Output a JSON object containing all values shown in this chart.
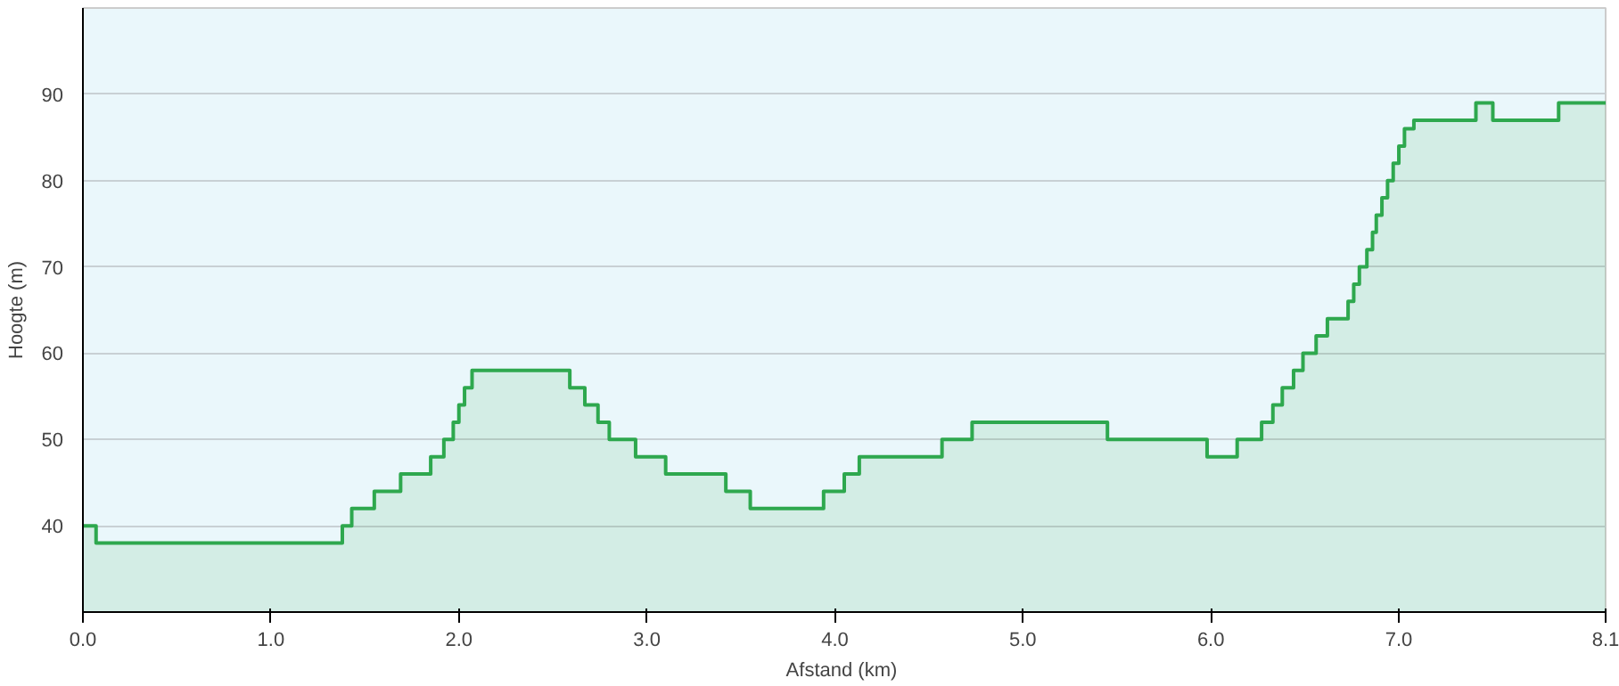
{
  "chart_data": {
    "type": "area",
    "xlabel": "Afstand  (km)",
    "ylabel": "Hoogte (m)",
    "x": [
      0,
      0.07,
      0.07,
      1.38,
      1.38,
      1.43,
      1.43,
      1.55,
      1.55,
      1.69,
      1.69,
      1.85,
      1.85,
      1.92,
      1.92,
      1.97,
      1.97,
      2.0,
      2.0,
      2.03,
      2.03,
      2.07,
      2.07,
      2.59,
      2.59,
      2.67,
      2.67,
      2.74,
      2.74,
      2.8,
      2.8,
      2.94,
      2.94,
      3.1,
      3.1,
      3.42,
      3.42,
      3.55,
      3.55,
      3.94,
      3.94,
      4.05,
      4.05,
      4.13,
      4.13,
      4.57,
      4.57,
      4.73,
      4.73,
      5.45,
      5.45,
      5.98,
      5.98,
      6.14,
      6.14,
      6.27,
      6.27,
      6.33,
      6.33,
      6.38,
      6.38,
      6.44,
      6.44,
      6.49,
      6.49,
      6.56,
      6.56,
      6.62,
      6.62,
      6.73,
      6.73,
      6.76,
      6.76,
      6.79,
      6.79,
      6.83,
      6.83,
      6.86,
      6.86,
      6.88,
      6.88,
      6.91,
      6.91,
      6.94,
      6.94,
      6.97,
      6.97,
      7.0,
      7.0,
      7.03,
      7.03,
      7.08,
      7.08,
      7.41,
      7.41,
      7.5,
      7.5,
      7.85,
      7.85,
      8.1
    ],
    "series": [
      {
        "color": "#2ea84e",
        "values": [
          40,
          40,
          38,
          38,
          40,
          40,
          42,
          42,
          44,
          44,
          46,
          46,
          48,
          48,
          50,
          50,
          52,
          52,
          54,
          54,
          56,
          56,
          58,
          58,
          56,
          56,
          54,
          54,
          52,
          52,
          50,
          50,
          48,
          48,
          46,
          46,
          44,
          44,
          42,
          42,
          44,
          44,
          46,
          46,
          48,
          48,
          50,
          50,
          52,
          52,
          50,
          50,
          48,
          48,
          50,
          50,
          52,
          52,
          54,
          54,
          56,
          56,
          58,
          58,
          60,
          60,
          62,
          62,
          64,
          64,
          66,
          66,
          68,
          68,
          70,
          70,
          72,
          72,
          74,
          74,
          76,
          76,
          78,
          78,
          80,
          80,
          82,
          82,
          84,
          84,
          86,
          86,
          87,
          87,
          89,
          89,
          87,
          87,
          89,
          89
        ]
      }
    ],
    "xlim": [
      0,
      8.1
    ],
    "ylim": [
      30,
      100
    ],
    "xticks": [
      {
        "value": 0,
        "label": "0.0"
      },
      {
        "value": 1,
        "label": "1.0"
      },
      {
        "value": 2,
        "label": "2.0"
      },
      {
        "value": 3,
        "label": "3.0"
      },
      {
        "value": 4,
        "label": "4.0"
      },
      {
        "value": 5,
        "label": "5.0"
      },
      {
        "value": 6,
        "label": "6.0"
      },
      {
        "value": 7,
        "label": "7.0"
      },
      8.1
    ],
    "yticks": [
      40,
      50,
      60,
      70,
      80,
      90
    ],
    "grid": "y"
  }
}
